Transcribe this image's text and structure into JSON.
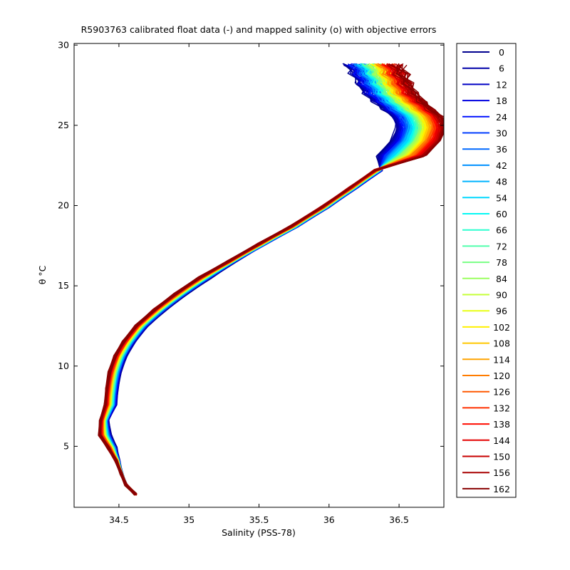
{
  "chart_data": {
    "type": "line",
    "title": "R5903763 calibrated float data (-) and mapped salinity (o) with objective errors",
    "xlabel": "Salinity (PSS-78)",
    "ylabel": "θ °C",
    "xlim": [
      34.18,
      36.82
    ],
    "ylim": [
      1.2,
      30.1
    ],
    "xticks": [
      34.5,
      35,
      35.5,
      36,
      36.5
    ],
    "yticks": [
      5,
      10,
      15,
      20,
      25,
      30
    ],
    "xtick_labels": [
      "34.5",
      "35",
      "35.5",
      "36",
      "36.5"
    ],
    "ytick_labels": [
      "5",
      "10",
      "15",
      "20",
      "25",
      "30"
    ],
    "grid": false,
    "legend_position": "outside-right",
    "series": [
      {
        "name": "0",
        "color": "#00008f"
      },
      {
        "name": "6",
        "color": "#0000a8"
      },
      {
        "name": "12",
        "color": "#0000c4"
      },
      {
        "name": "18",
        "color": "#0000e0"
      },
      {
        "name": "24",
        "color": "#0010ff"
      },
      {
        "name": "30",
        "color": "#003cff"
      },
      {
        "name": "36",
        "color": "#0068ff"
      },
      {
        "name": "42",
        "color": "#0090ff"
      },
      {
        "name": "48",
        "color": "#00b4ff"
      },
      {
        "name": "54",
        "color": "#00d8ff"
      },
      {
        "name": "60",
        "color": "#04f8f4"
      },
      {
        "name": "66",
        "color": "#2cffd0"
      },
      {
        "name": "72",
        "color": "#50ffac"
      },
      {
        "name": "78",
        "color": "#78ff84"
      },
      {
        "name": "84",
        "color": "#9cff60"
      },
      {
        "name": "90",
        "color": "#c4ff38"
      },
      {
        "name": "96",
        "color": "#e8ff14"
      },
      {
        "name": "102",
        "color": "#fff000"
      },
      {
        "name": "108",
        "color": "#ffc800"
      },
      {
        "name": "114",
        "color": "#ffa400"
      },
      {
        "name": "120",
        "color": "#ff7c00"
      },
      {
        "name": "126",
        "color": "#ff5800"
      },
      {
        "name": "132",
        "color": "#ff3000"
      },
      {
        "name": "138",
        "color": "#ff0c00"
      },
      {
        "name": "144",
        "color": "#e40000"
      },
      {
        "name": "150",
        "color": "#c80000"
      },
      {
        "name": "156",
        "color": "#a80000"
      },
      {
        "name": "162",
        "color": "#880000"
      }
    ],
    "profile_points": [
      [
        34.62,
        2.0
      ],
      [
        34.55,
        2.6
      ],
      [
        34.52,
        3.3
      ],
      [
        34.5,
        4.1
      ],
      [
        34.48,
        4.9
      ],
      [
        34.44,
        5.7
      ],
      [
        34.42,
        6.6
      ],
      [
        34.43,
        7.6
      ],
      [
        34.44,
        8.6
      ],
      [
        34.46,
        9.6
      ],
      [
        34.5,
        10.6
      ],
      [
        34.56,
        11.5
      ],
      [
        34.65,
        12.5
      ],
      [
        34.78,
        13.5
      ],
      [
        34.93,
        14.5
      ],
      [
        35.1,
        15.5
      ],
      [
        35.3,
        16.5
      ],
      [
        35.52,
        17.6
      ],
      [
        35.75,
        18.7
      ],
      [
        35.97,
        19.9
      ],
      [
        36.17,
        21.1
      ],
      [
        36.35,
        22.2
      ],
      [
        36.5,
        23.1
      ],
      [
        36.6,
        24.0
      ],
      [
        36.64,
        24.8
      ],
      [
        36.62,
        25.5
      ],
      [
        36.55,
        26.0
      ],
      [
        36.48,
        26.5
      ],
      [
        36.42,
        27.0
      ],
      [
        36.38,
        27.6
      ],
      [
        36.34,
        28.2
      ],
      [
        36.3,
        28.8
      ]
    ]
  }
}
